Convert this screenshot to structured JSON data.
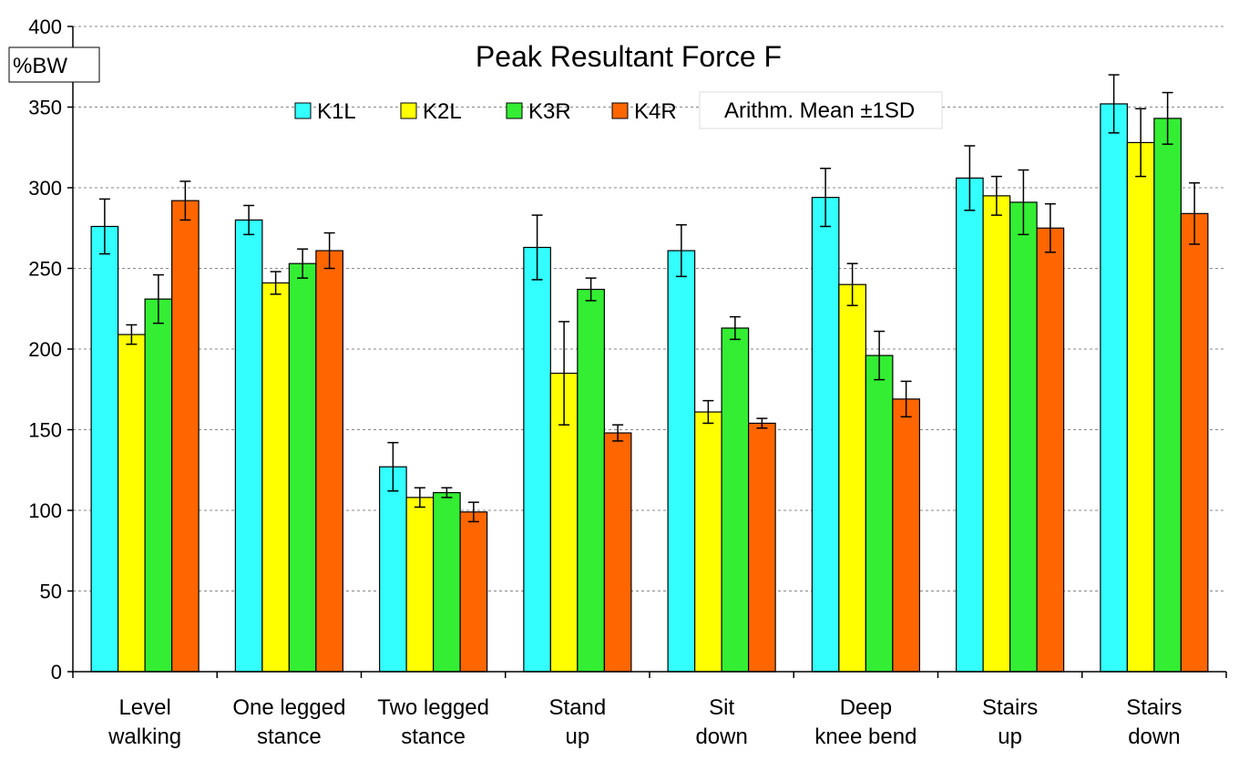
{
  "chart_data": {
    "type": "bar",
    "title": "Peak Resultant Force F",
    "ylabel": "%BW",
    "xlabel": "",
    "ylim": [
      0,
      400
    ],
    "yticks": [
      0,
      50,
      100,
      150,
      200,
      250,
      300,
      350,
      400
    ],
    "grid": "horizontal dashed",
    "legend_position": "top-center",
    "legend_note": "Arithm. Mean ±1SD",
    "categories": [
      [
        "Level",
        "walking"
      ],
      [
        "One legged",
        "stance"
      ],
      [
        "Two legged",
        "stance"
      ],
      [
        "Stand",
        "up"
      ],
      [
        "Sit",
        "down"
      ],
      [
        "Deep",
        "knee bend"
      ],
      [
        "Stairs",
        "up"
      ],
      [
        "Stairs",
        "down"
      ]
    ],
    "series": [
      {
        "name": "K1L",
        "color": "#33ffff",
        "values": [
          276,
          280,
          127,
          263,
          261,
          294,
          306,
          352
        ],
        "sd": [
          17,
          9,
          15,
          20,
          16,
          18,
          20,
          18
        ]
      },
      {
        "name": "K2L",
        "color": "#ffff00",
        "values": [
          209,
          241,
          108,
          185,
          161,
          240,
          295,
          328
        ],
        "sd": [
          6,
          7,
          6,
          32,
          7,
          13,
          12,
          21
        ]
      },
      {
        "name": "K3R",
        "color": "#33ee33",
        "values": [
          231,
          253,
          111,
          237,
          213,
          196,
          291,
          343
        ],
        "sd": [
          15,
          9,
          3,
          7,
          7,
          15,
          20,
          16
        ]
      },
      {
        "name": "K4R",
        "color": "#ff6600",
        "values": [
          292,
          261,
          99,
          148,
          154,
          169,
          275,
          284
        ],
        "sd": [
          12,
          11,
          6,
          5,
          3,
          11,
          15,
          19
        ]
      }
    ]
  }
}
